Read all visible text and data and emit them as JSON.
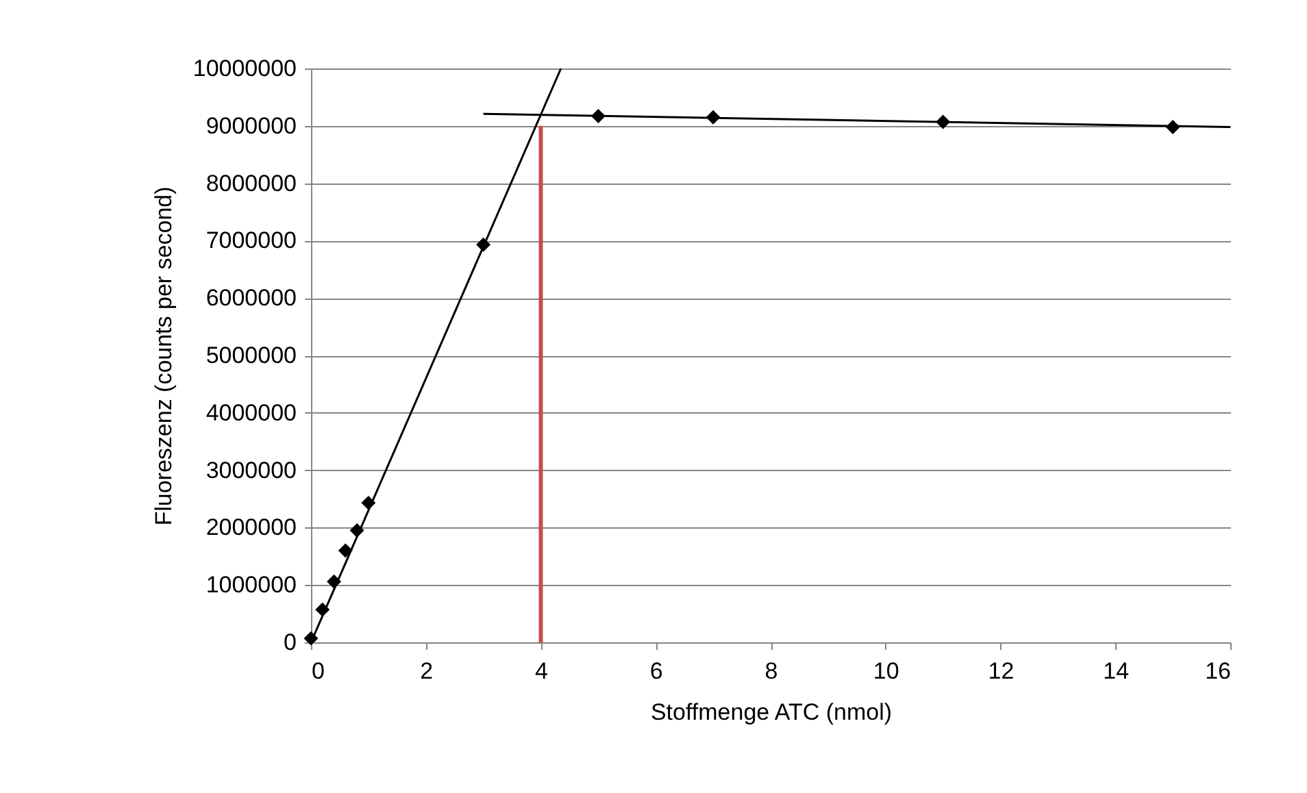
{
  "chart_data": {
    "type": "scatter",
    "xlabel": "Stoffmenge ATC (nmol)",
    "ylabel": "Fluoreszenz (counts per second)",
    "xlim": [
      0,
      16
    ],
    "xticks": [
      0,
      2,
      4,
      6,
      8,
      10,
      12,
      14,
      16
    ],
    "ylim": [
      0,
      10000000
    ],
    "yticks": [
      0,
      1000000,
      2000000,
      3000000,
      4000000,
      5000000,
      6000000,
      7000000,
      8000000,
      9000000,
      10000000
    ],
    "grid": "y",
    "series": [
      {
        "type": "line",
        "color": "#000000",
        "x": [
          0,
          4.35
        ],
        "values": [
          0,
          10000000
        ],
        "marker": "none",
        "line_style": "solid"
      },
      {
        "type": "line",
        "color": "#000000",
        "x": [
          3,
          16
        ],
        "values": [
          9210000,
          8980000
        ],
        "marker": "none",
        "line_style": "solid"
      },
      {
        "type": "line",
        "color": "#c0504d",
        "x": [
          4,
          4
        ],
        "values": [
          0,
          9000000
        ],
        "marker": "none",
        "line_style": "solid"
      },
      {
        "color": "#000000",
        "marker": "diamond",
        "x": [
          0,
          0.2,
          0.4,
          0.6,
          0.8,
          1,
          3,
          5,
          7,
          11,
          15
        ],
        "values": [
          70000,
          570000,
          1060000,
          1600000,
          1950000,
          2430000,
          6930000,
          9170000,
          9150000,
          9070000,
          8980000
        ]
      }
    ]
  }
}
